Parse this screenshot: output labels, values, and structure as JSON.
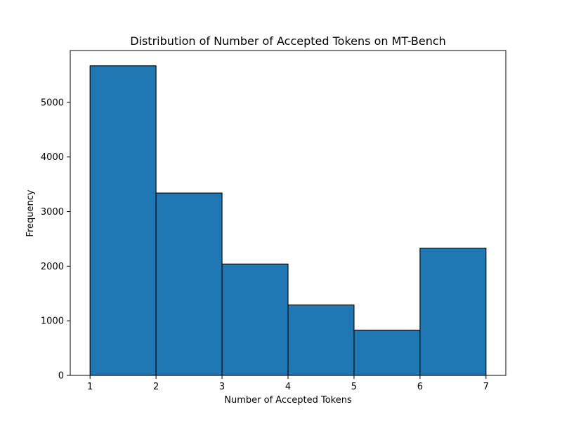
{
  "chart_data": {
    "type": "bar",
    "title": "Distribution of Number of Accepted Tokens on MT-Bench",
    "xlabel": "Number of Accepted Tokens",
    "ylabel": "Frequency",
    "bins": [
      {
        "x0": 1,
        "x1": 2,
        "value": 5670
      },
      {
        "x0": 2,
        "x1": 3,
        "value": 3340
      },
      {
        "x0": 3,
        "x1": 4,
        "value": 2040
      },
      {
        "x0": 4,
        "x1": 5,
        "value": 1290
      },
      {
        "x0": 5,
        "x1": 6,
        "value": 830
      },
      {
        "x0": 6,
        "x1": 7,
        "value": 2330
      }
    ],
    "xlim": [
      0.7,
      7.3
    ],
    "ylim": [
      0,
      5950
    ],
    "xticks": [
      1,
      2,
      3,
      4,
      5,
      6,
      7
    ],
    "yticks": [
      0,
      1000,
      2000,
      3000,
      4000,
      5000
    ],
    "grid": false,
    "bar_color": "#1f77b4",
    "edge_color": "#000000"
  }
}
